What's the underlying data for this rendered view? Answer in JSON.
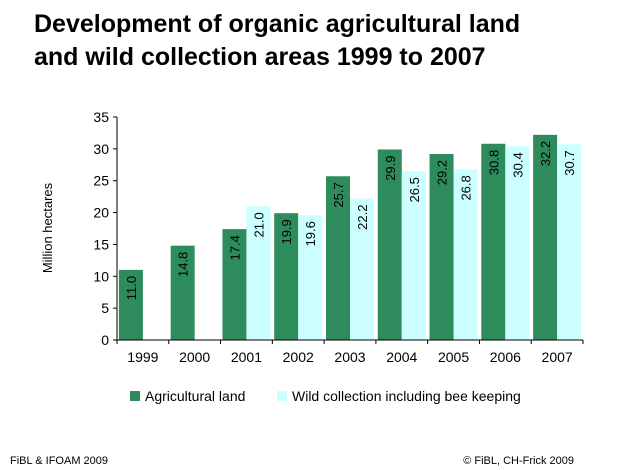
{
  "title_line1": "Development of organic agricultural land",
  "title_line2": "and wild collection areas 1999 to 2007",
  "footer_left": "FiBL & IFOAM 2009",
  "footer_right": "© FiBL, CH-Frick 2009",
  "colors": {
    "agricultural": "#2e8b5c",
    "wild": "#ccffff",
    "plot_background": "#ffffff",
    "axis": "#000000"
  },
  "chart_data": {
    "type": "bar",
    "categories": [
      "1999",
      "2000",
      "2001",
      "2002",
      "2003",
      "2004",
      "2005",
      "2006",
      "2007"
    ],
    "series": [
      {
        "name": "Agricultural land",
        "values": [
          11.0,
          14.8,
          17.4,
          19.9,
          25.7,
          29.9,
          29.2,
          30.8,
          32.2
        ],
        "labels": [
          "11.0",
          "14.8",
          "17.4",
          "19.9",
          "25.7",
          "29.9",
          "29.2",
          "30.8",
          "32.2"
        ]
      },
      {
        "name": "Wild collection including bee keeping",
        "values": [
          null,
          null,
          21.0,
          19.6,
          22.2,
          26.5,
          26.8,
          30.4,
          30.7
        ],
        "labels": [
          "",
          "",
          "21.0",
          "19.6",
          "22.2",
          "26.5",
          "26.8",
          "30.4",
          "30.7"
        ]
      }
    ],
    "ylabel": "Million hectares",
    "xlabel": "",
    "ylim": [
      0,
      35
    ],
    "yticks": [
      "0",
      "5",
      "10",
      "15",
      "20",
      "25",
      "30",
      "35"
    ],
    "grid": false,
    "legend_position": "bottom"
  }
}
